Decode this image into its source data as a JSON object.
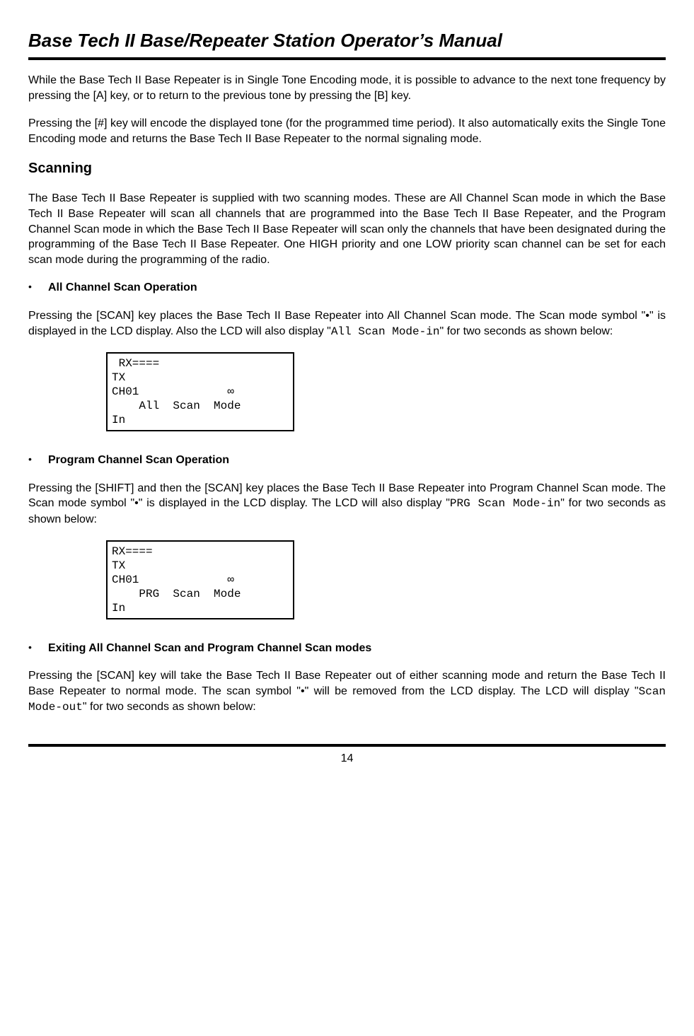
{
  "header": {
    "title": "Base Tech II Base/Repeater Station Operator’s Manual"
  },
  "intro": {
    "p1": "While the Base Tech II Base Repeater is in Single Tone Encoding mode, it is possible to advance to the next tone frequency by pressing the [A] key, or to return to the previous tone by pressing the [B] key.",
    "p2": "Pressing the [#] key will encode the displayed tone (for the programmed time period). It also automatically exits the Single Tone Encoding mode and returns the Base Tech II Base Repeater to the normal signaling mode."
  },
  "scanning": {
    "heading": "Scanning",
    "p1": "The Base Tech II Base Repeater is supplied with two scanning modes. These are All Channel Scan mode in which the Base Tech II Base Repeater will scan all channels that are programmed into the Base Tech II Base Repeater, and the Program Channel Scan mode in which the Base Tech II Base Repeater will scan only the channels that have been designated during the programming of the Base Tech II Base Repeater. One HIGH priority and one LOW priority scan channel can be set for each scan mode during the programming of the radio."
  },
  "all_scan": {
    "bullet_label": "All Channel Scan Operation",
    "p1_a": "Pressing the [SCAN] key places the Base Tech II Base Repeater into All Channel Scan mode. The Scan mode symbol \"",
    "p1_sym": "•",
    "p1_b": "\" is displayed in the LCD display. Also the LCD will also display \"",
    "p1_code": "All Scan Mode-in",
    "p1_c": "\" for two seconds as shown below:",
    "lcd": " RX====\nTX\nCH01             ∞\n    All  Scan  Mode\nIn"
  },
  "prg_scan": {
    "bullet_label": "Program Channel Scan Operation",
    "p1_a": "Pressing the [SHIFT] and then the [SCAN] key places the Base Tech II Base Repeater into Program Channel Scan mode. The Scan mode symbol \"",
    "p1_sym": "•",
    "p1_b": "\" is displayed in the LCD display. The LCD will also display \"",
    "p1_code": "PRG Scan Mode-in",
    "p1_c": "\" for two seconds as shown below:",
    "lcd": "RX====\nTX\nCH01             ∞\n    PRG  Scan  Mode\nIn"
  },
  "exit_scan": {
    "bullet_label": "Exiting All Channel Scan and Program Channel Scan modes",
    "p1_a": "Pressing the [SCAN] key will take the Base Tech II Base Repeater out of either scanning mode and return the Base Tech II Base Repeater to normal mode. The scan symbol \"",
    "p1_sym": "•",
    "p1_b": "\" will be removed from the LCD display. The LCD will display \"",
    "p1_code": "Scan Mode-out",
    "p1_c": "\" for two seconds as shown below:"
  },
  "footer": {
    "page": "14"
  }
}
